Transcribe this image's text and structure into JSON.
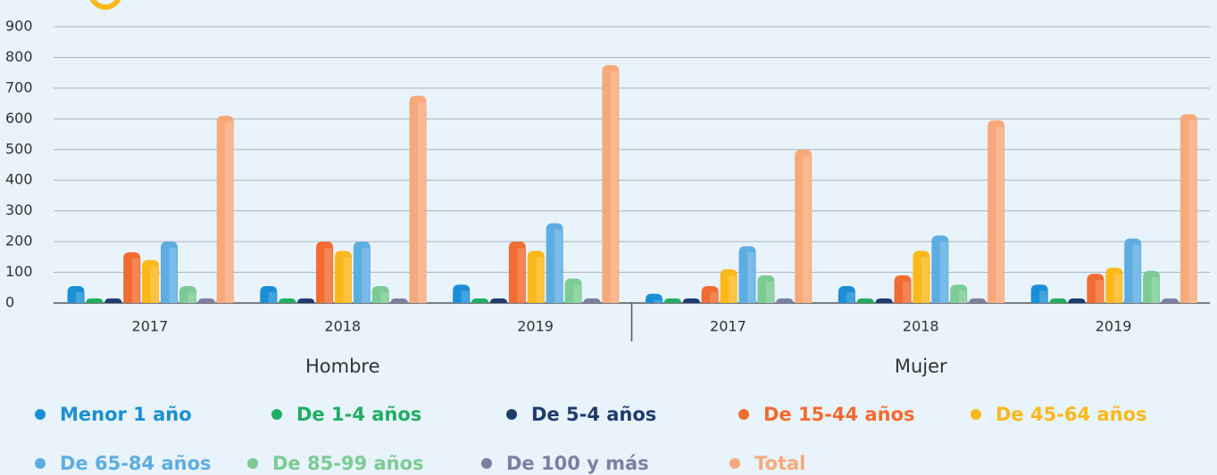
{
  "chart_data": {
    "type": "bar",
    "categories": [
      "2017",
      "2018",
      "2019",
      "2017",
      "2018",
      "2019"
    ],
    "groups": [
      "Hombre",
      "Mujer"
    ],
    "ylim": [
      0,
      900
    ],
    "yticks": [
      0,
      100,
      200,
      300,
      400,
      500,
      600,
      700,
      800,
      900
    ],
    "grid": true,
    "series": [
      {
        "name": "Menor 1 año",
        "color": "#1a8fd6",
        "values": [
          55,
          55,
          60,
          30,
          55,
          60
        ]
      },
      {
        "name": "De 1-4 años",
        "color": "#1fae62",
        "values": [
          15,
          15,
          15,
          15,
          15,
          15
        ]
      },
      {
        "name": "De 5-4 años",
        "color": "#1f3c6e",
        "values": [
          15,
          15,
          15,
          15,
          15,
          15
        ]
      },
      {
        "name": "De 15-44 años",
        "color": "#f26b30",
        "values": [
          165,
          200,
          200,
          55,
          90,
          95
        ]
      },
      {
        "name": "De 45-64 años",
        "color": "#fbb81a",
        "values": [
          140,
          170,
          170,
          110,
          170,
          115
        ]
      },
      {
        "name": "De 65-84 años",
        "color": "#5dade2",
        "values": [
          200,
          200,
          260,
          185,
          220,
          210
        ]
      },
      {
        "name": "De 85-99 años",
        "color": "#7ccb94",
        "values": [
          55,
          55,
          80,
          90,
          60,
          105
        ]
      },
      {
        "name": "De 100 y más",
        "color": "#7d7fa0",
        "values": [
          15,
          15,
          15,
          15,
          15,
          15
        ]
      },
      {
        "name": "Total",
        "color": "#f8a97a",
        "values": [
          610,
          675,
          775,
          500,
          595,
          615
        ]
      }
    ]
  }
}
